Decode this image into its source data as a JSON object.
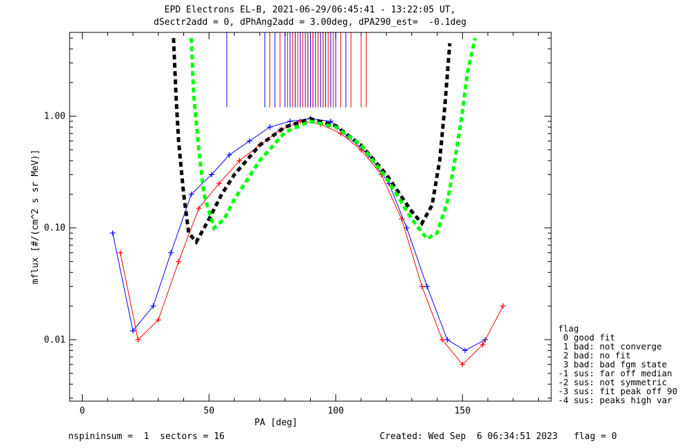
{
  "header": {
    "title_line1": "EPD Electrons EL-B, 2021-06-29/06:45:41 - 13:22:05 UT,",
    "title_line2": "dSectr2add = 0, dPhAng2add = 3.00deg, dPA290_est=  -0.1deg"
  },
  "footer": {
    "left": "nspininsum =  1  sectors = 16",
    "right": "Created: Wed Sep  6 06:34:51 2023   flag = 0"
  },
  "legend": {
    "title": "flag",
    "items": [
      " 0 good fit",
      " 1 bad: not converge",
      " 2 bad: no fit",
      " 3 bad: bad fgm state",
      "-1 sus: far off median",
      "-2 sus: not symmetric",
      "-3 sus: fit peak off 90",
      "-4 sus: peaks high var"
    ]
  },
  "colors": {
    "series_blue": "#0000ff",
    "series_red": "#ff0000",
    "fit_black": "#000000",
    "fit_green": "#00ff00"
  },
  "chart_data": {
    "type": "line",
    "xlabel": "PA [deg]",
    "ylabel": "mflux [#/(cm^2 s sr MeV)]",
    "xlim": [
      -5,
      185
    ],
    "ylim_log10": [
      -2.55,
      0.75
    ],
    "y_scale": "log",
    "xticks": [
      {
        "value": 0,
        "label": "0"
      },
      {
        "value": 50,
        "label": "50"
      },
      {
        "value": 100,
        "label": "100"
      },
      {
        "value": 150,
        "label": "150"
      }
    ],
    "yticks": [
      {
        "value": 0.01,
        "label": "0.01"
      },
      {
        "value": 0.1,
        "label": "0.10"
      },
      {
        "value": 1.0,
        "label": "1.00"
      }
    ],
    "series": [
      {
        "color": "blue",
        "x": [
          12,
          20,
          28,
          35,
          43,
          51,
          58,
          66,
          74,
          82,
          90,
          98,
          105,
          113,
          121,
          128,
          136,
          144,
          151,
          159
        ],
        "y": [
          0.09,
          0.012,
          0.02,
          0.06,
          0.2,
          0.3,
          0.45,
          0.6,
          0.8,
          0.9,
          0.95,
          0.9,
          0.65,
          0.45,
          0.25,
          0.1,
          0.03,
          0.01,
          0.008,
          0.01
        ]
      },
      {
        "color": "red",
        "x": [
          15,
          22,
          30,
          38,
          46,
          54,
          62,
          70,
          78,
          86,
          94,
          102,
          110,
          118,
          126,
          134,
          142,
          150,
          158,
          166
        ],
        "y": [
          0.06,
          0.01,
          0.015,
          0.05,
          0.15,
          0.25,
          0.4,
          0.55,
          0.75,
          0.9,
          0.85,
          0.7,
          0.5,
          0.3,
          0.12,
          0.03,
          0.01,
          0.006,
          0.009,
          0.02
        ]
      }
    ],
    "fits": [
      {
        "color": "black",
        "style": "dashed",
        "x": [
          36,
          37,
          38,
          40,
          42,
          45,
          50,
          55,
          60,
          70,
          80,
          90,
          100,
          110,
          120,
          130,
          134,
          138,
          141,
          143,
          145
        ],
        "y": [
          5.0,
          1.5,
          0.6,
          0.2,
          0.09,
          0.075,
          0.12,
          0.2,
          0.3,
          0.55,
          0.8,
          0.95,
          0.82,
          0.55,
          0.3,
          0.14,
          0.11,
          0.16,
          0.4,
          1.2,
          4.5
        ]
      },
      {
        "color": "green",
        "style": "dashed",
        "x": [
          43,
          44,
          46,
          48,
          52,
          56,
          60,
          70,
          80,
          90,
          100,
          110,
          120,
          130,
          136,
          140,
          144,
          147,
          150,
          152,
          155
        ],
        "y": [
          5.0,
          1.5,
          0.5,
          0.2,
          0.1,
          0.12,
          0.18,
          0.4,
          0.72,
          0.9,
          0.8,
          0.55,
          0.28,
          0.12,
          0.08,
          0.09,
          0.17,
          0.4,
          1.1,
          2.5,
          5.0
        ]
      }
    ],
    "pa90_marker_lines": {
      "blue_x": [
        57,
        72,
        76,
        80,
        82,
        84,
        86,
        88,
        89,
        90,
        91,
        92,
        93,
        94,
        95,
        96,
        98,
        100,
        104
      ],
      "red_x": [
        74,
        78,
        81,
        83,
        85,
        87,
        89,
        91,
        93,
        95,
        97,
        99,
        102,
        106,
        110,
        112
      ],
      "y_low": 1.2
    }
  }
}
